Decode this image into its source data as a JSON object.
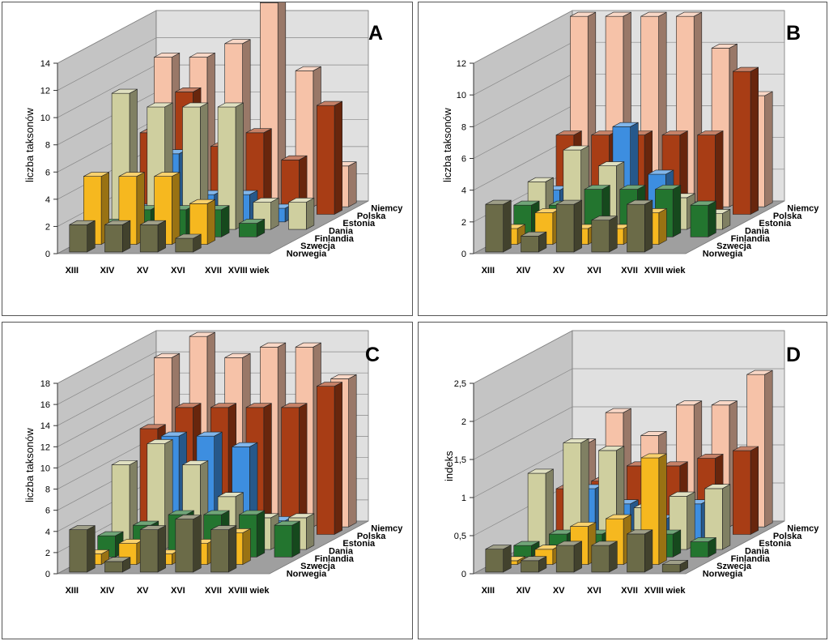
{
  "colors": {
    "Norwegia": "#6b6b48",
    "Szwecja": "#f6b81f",
    "Finlandia": "#23752f",
    "Dania": "#cfcf9f",
    "Estonia": "#3d8ee0",
    "Polska": "#a83d15",
    "Niemcy": "#f6c2a8"
  },
  "chart_data": [
    {
      "type": "bar3d",
      "title": "A",
      "ylabel": "liczba taksonów",
      "ylim": [
        0,
        14
      ],
      "yticks": [
        "0",
        "2",
        "4",
        "6",
        "8",
        "10",
        "12",
        "14"
      ],
      "categories": [
        "XIII",
        "XIV",
        "XV",
        "XVI",
        "XVII",
        "XVIII wiek"
      ],
      "series": [
        {
          "name": "Norwegia",
          "values": [
            2,
            2,
            2,
            1,
            0,
            0
          ]
        },
        {
          "name": "Szwecja",
          "values": [
            5,
            5,
            5,
            3,
            0,
            0
          ]
        },
        {
          "name": "Finlandia",
          "values": [
            1,
            2,
            2,
            2,
            1,
            0
          ]
        },
        {
          "name": "Dania",
          "values": [
            10,
            9,
            9,
            9,
            2,
            2
          ]
        },
        {
          "name": "Estonia",
          "values": [
            1,
            5,
            2,
            2,
            1,
            0
          ]
        },
        {
          "name": "Polska",
          "values": [
            6,
            9,
            5,
            6,
            4,
            8
          ]
        },
        {
          "name": "Niemcy",
          "values": [
            11,
            11,
            12,
            15,
            10,
            3
          ]
        }
      ]
    },
    {
      "type": "bar3d",
      "title": "B",
      "ylabel": "liczba taksonów",
      "ylim": [
        0,
        12
      ],
      "yticks": [
        "0",
        "2",
        "4",
        "6",
        "8",
        "10",
        "12"
      ],
      "categories": [
        "XIII",
        "XIV",
        "XV",
        "XVI",
        "XVII",
        "XVIII wiek"
      ],
      "series": [
        {
          "name": "Norwegia",
          "values": [
            3,
            1,
            3,
            2,
            3,
            0
          ]
        },
        {
          "name": "Szwecja",
          "values": [
            1,
            2,
            1,
            1,
            2,
            0
          ]
        },
        {
          "name": "Finlandia",
          "values": [
            2,
            2,
            3,
            3,
            3,
            2
          ]
        },
        {
          "name": "Dania",
          "values": [
            3,
            5,
            4,
            1,
            2,
            1
          ]
        },
        {
          "name": "Estonia",
          "values": [
            2,
            2,
            6,
            3,
            1,
            0
          ]
        },
        {
          "name": "Polska",
          "values": [
            5,
            5,
            5,
            5,
            5,
            9
          ]
        },
        {
          "name": "Niemcy",
          "values": [
            12,
            12,
            12,
            12,
            10,
            7
          ]
        }
      ]
    },
    {
      "type": "bar3d",
      "title": "C",
      "ylabel": "liczba taksonów",
      "ylim": [
        0,
        18
      ],
      "yticks": [
        "0",
        "2",
        "4",
        "6",
        "8",
        "10",
        "12",
        "14",
        "16",
        "18"
      ],
      "categories": [
        "XIII",
        "XIV",
        "XV",
        "XVI",
        "XVII",
        "XVIII wiek"
      ],
      "series": [
        {
          "name": "Norwegia",
          "values": [
            4,
            1,
            4,
            5,
            4,
            0
          ]
        },
        {
          "name": "Szwecja",
          "values": [
            1,
            2,
            1,
            2,
            3,
            0
          ]
        },
        {
          "name": "Finlandia",
          "values": [
            2,
            3,
            4,
            4,
            4,
            3
          ]
        },
        {
          "name": "Dania",
          "values": [
            8,
            10,
            8,
            5,
            3,
            3
          ]
        },
        {
          "name": "Estonia",
          "values": [
            1,
            10,
            10,
            9,
            2,
            0
          ]
        },
        {
          "name": "Polska",
          "values": [
            10,
            12,
            12,
            12,
            12,
            14
          ]
        },
        {
          "name": "Niemcy",
          "values": [
            16,
            18,
            16,
            17,
            17,
            14
          ]
        }
      ]
    },
    {
      "type": "bar3d",
      "title": "D",
      "ylabel": "indeks",
      "ylim": [
        0,
        2.5
      ],
      "yticks": [
        "0",
        "0,5",
        "1",
        "1,5",
        "2",
        "2,5"
      ],
      "categories": [
        "XIII",
        "XIV",
        "XV",
        "XVI",
        "XVII",
        "XVIII wiek"
      ],
      "series": [
        {
          "name": "Norwegia",
          "values": [
            0.3,
            0.15,
            0.35,
            0.35,
            0.5,
            0.1
          ]
        },
        {
          "name": "Szwecja",
          "values": [
            0.05,
            0.2,
            0.5,
            0.6,
            1.4,
            0
          ]
        },
        {
          "name": "Finlandia",
          "values": [
            0.15,
            0.3,
            0.3,
            0.3,
            0.3,
            0.2
          ]
        },
        {
          "name": "Dania",
          "values": [
            1.0,
            1.4,
            1.3,
            0.55,
            0.7,
            0.8
          ]
        },
        {
          "name": "Estonia",
          "values": [
            0.05,
            0.7,
            0.5,
            0.3,
            0.5,
            0
          ]
        },
        {
          "name": "Polska",
          "values": [
            0.6,
            0.7,
            0.9,
            0.9,
            1.0,
            1.1
          ]
        },
        {
          "name": "Niemcy",
          "values": [
            1.1,
            1.5,
            1.2,
            1.6,
            1.6,
            2.0
          ]
        }
      ]
    }
  ]
}
